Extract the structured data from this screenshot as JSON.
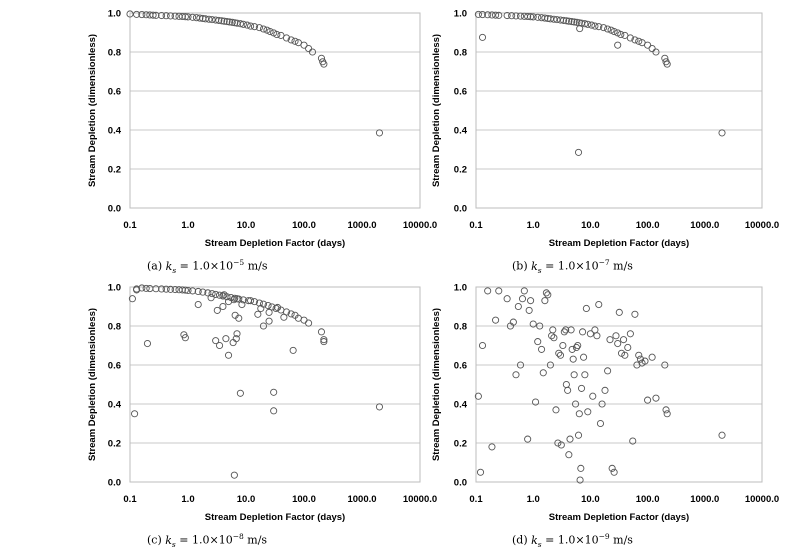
{
  "chart_data": [
    {
      "type": "scatter",
      "x_scale": "log",
      "xlabel": "Stream Depletion Factor (days)",
      "ylabel": "Stream Depletion (dimensionless)",
      "xlim": [
        0.1,
        10000
      ],
      "ylim": [
        0,
        1
      ],
      "xticks": [
        "0.1",
        "1.0",
        "10.0",
        "100.0",
        "1000.0",
        "10000.0"
      ],
      "yticks": [
        "0.0",
        "0.2",
        "0.4",
        "0.6",
        "0.8",
        "1.0"
      ],
      "grid": "horizontal",
      "caption": {
        "prefix": "(a)",
        "mantissa": "1.0",
        "exponent": "−5",
        "units": "m/s"
      },
      "x": [
        0.1,
        0.13,
        0.16,
        0.19,
        0.22,
        0.25,
        0.28,
        0.35,
        0.42,
        0.5,
        0.6,
        0.7,
        0.8,
        0.9,
        1.0,
        1.2,
        1.4,
        1.6,
        1.8,
        2.0,
        2.3,
        2.6,
        3.0,
        3.4,
        3.8,
        4.2,
        4.7,
        5.2,
        5.8,
        6.4,
        7.0,
        8.0,
        9.0,
        10.5,
        12.0,
        14.0,
        17.0,
        20.0,
        23.0,
        26.0,
        30.0,
        34.0,
        40.0,
        50.0,
        60.0,
        70.0,
        80.0,
        100.0,
        120.0,
        140.0,
        200.0,
        210.0,
        220.0,
        2000.0
      ],
      "y": [
        0.995,
        0.993,
        0.992,
        0.991,
        0.99,
        0.989,
        0.988,
        0.987,
        0.986,
        0.985,
        0.984,
        0.983,
        0.982,
        0.981,
        0.98,
        0.978,
        0.976,
        0.974,
        0.972,
        0.97,
        0.968,
        0.966,
        0.964,
        0.962,
        0.96,
        0.958,
        0.956,
        0.954,
        0.952,
        0.95,
        0.948,
        0.945,
        0.942,
        0.938,
        0.933,
        0.93,
        0.925,
        0.918,
        0.912,
        0.905,
        0.898,
        0.89,
        0.885,
        0.872,
        0.862,
        0.855,
        0.848,
        0.835,
        0.818,
        0.8,
        0.768,
        0.75,
        0.738,
        0.385
      ]
    },
    {
      "type": "scatter",
      "x_scale": "log",
      "xlabel": "Stream Depletion Factor (days)",
      "ylabel": "Stream Depletion (dimensionless)",
      "xlim": [
        0.1,
        10000
      ],
      "ylim": [
        0,
        1
      ],
      "xticks": [
        "0.1",
        "1.0",
        "10.0",
        "100.0",
        "1000.0",
        "10000.0"
      ],
      "yticks": [
        "0.0",
        "0.2",
        "0.4",
        "0.6",
        "0.8",
        "1.0"
      ],
      "grid": "horizontal",
      "caption": {
        "prefix": "(b)",
        "mantissa": "1.0",
        "exponent": "−7",
        "units": "m/s"
      },
      "x": [
        0.11,
        0.13,
        0.16,
        0.19,
        0.22,
        0.25,
        0.35,
        0.42,
        0.5,
        0.6,
        0.7,
        0.8,
        0.9,
        1.0,
        1.2,
        1.4,
        1.6,
        1.8,
        2.0,
        2.3,
        2.6,
        3.0,
        3.4,
        3.8,
        4.2,
        4.7,
        5.2,
        5.8,
        6.4,
        7.0,
        8.0,
        9.0,
        10.5,
        12.0,
        14.0,
        17.0,
        20.0,
        23.0,
        26.0,
        30.0,
        34.0,
        40.0,
        50.0,
        60.0,
        70.0,
        80.0,
        100.0,
        120.0,
        140.0,
        200.0,
        210.0,
        220.0,
        2000.0,
        0.13,
        6.5,
        30.0,
        6.2
      ],
      "y": [
        0.993,
        0.992,
        0.991,
        0.99,
        0.989,
        0.988,
        0.987,
        0.986,
        0.985,
        0.984,
        0.983,
        0.982,
        0.981,
        0.98,
        0.978,
        0.976,
        0.974,
        0.972,
        0.97,
        0.968,
        0.966,
        0.964,
        0.962,
        0.96,
        0.958,
        0.956,
        0.954,
        0.952,
        0.95,
        0.948,
        0.945,
        0.942,
        0.938,
        0.933,
        0.93,
        0.925,
        0.918,
        0.912,
        0.905,
        0.898,
        0.89,
        0.885,
        0.872,
        0.862,
        0.855,
        0.848,
        0.835,
        0.818,
        0.8,
        0.768,
        0.75,
        0.738,
        0.385,
        0.875,
        0.92,
        0.835,
        0.285
      ]
    },
    {
      "type": "scatter",
      "x_scale": "log",
      "xlabel": "Stream Depletion Factor (days)",
      "ylabel": "Stream Depletion (dimensionless)",
      "xlim": [
        0.1,
        10000
      ],
      "ylim": [
        0,
        1
      ],
      "xticks": [
        "0.1",
        "1.0",
        "10.0",
        "100.0",
        "1000.0",
        "10000.0"
      ],
      "yticks": [
        "0.0",
        "0.2",
        "0.4",
        "0.6",
        "0.8",
        "1.0"
      ],
      "grid": "horizontal",
      "caption": {
        "prefix": "(c)",
        "mantissa": "1.0",
        "exponent": "−8",
        "units": "m/s"
      },
      "x": [
        0.11,
        0.13,
        0.16,
        0.19,
        0.22,
        0.28,
        0.35,
        0.42,
        0.5,
        0.6,
        0.7,
        0.8,
        0.9,
        1.0,
        1.2,
        1.5,
        1.8,
        2.2,
        2.6,
        3.0,
        3.5,
        4.0,
        4.7,
        5.5,
        6.4,
        7.5,
        9.0,
        11.0,
        14.0,
        17.0,
        20.0,
        24.0,
        28.0,
        33.0,
        40.0,
        50.0,
        60.0,
        70.0,
        80.0,
        100.0,
        120.0,
        200.0,
        220.0,
        0.12,
        0.2,
        0.85,
        1.5,
        3.0,
        3.5,
        4.0,
        4.5,
        5.0,
        6.0,
        6.2,
        6.5,
        7.0,
        7.5,
        8.0,
        20.0,
        25.0,
        30.0,
        30.0,
        35.0,
        65.0,
        2000.0,
        6.3,
        4.2,
        7.0,
        5.0,
        4.0,
        2.5,
        3.2,
        12.0,
        16.0,
        25.0,
        8.5,
        45.0,
        0.9,
        0.13,
        6.8,
        18.0,
        220.0
      ],
      "y": [
        0.94,
        0.99,
        0.995,
        0.993,
        0.992,
        0.991,
        0.99,
        0.989,
        0.988,
        0.987,
        0.986,
        0.985,
        0.984,
        0.982,
        0.98,
        0.977,
        0.974,
        0.97,
        0.966,
        0.962,
        0.958,
        0.954,
        0.95,
        0.946,
        0.942,
        0.938,
        0.934,
        0.93,
        0.925,
        0.918,
        0.912,
        0.905,
        0.898,
        0.89,
        0.882,
        0.872,
        0.862,
        0.855,
        0.84,
        0.83,
        0.815,
        0.77,
        0.72,
        0.35,
        0.71,
        0.755,
        0.91,
        0.725,
        0.7,
        0.955,
        0.735,
        0.65,
        0.715,
        0.935,
        0.855,
        0.76,
        0.84,
        0.455,
        0.8,
        0.87,
        0.46,
        0.365,
        0.895,
        0.675,
        0.385,
        0.035,
        0.96,
        0.94,
        0.925,
        0.9,
        0.945,
        0.88,
        0.93,
        0.86,
        0.825,
        0.91,
        0.845,
        0.74,
        0.985,
        0.735,
        0.89,
        0.73
      ]
    },
    {
      "type": "scatter",
      "x_scale": "log",
      "xlabel": "Stream Depletion Factor (days)",
      "ylabel": "Stream Depletion (dimensionless)",
      "xlim": [
        0.1,
        10000
      ],
      "ylim": [
        0,
        1
      ],
      "xticks": [
        "0.1",
        "1.0",
        "10.0",
        "100.0",
        "1000.0",
        "10000.0"
      ],
      "yticks": [
        "0.0",
        "0.2",
        "0.4",
        "0.6",
        "0.8",
        "1.0"
      ],
      "grid": "horizontal",
      "caption": {
        "prefix": "(d)",
        "mantissa": "1.0",
        "exponent": "−9",
        "units": "m/s"
      },
      "x": [
        0.11,
        0.12,
        0.13,
        0.16,
        0.19,
        0.22,
        0.25,
        0.35,
        0.4,
        0.45,
        0.5,
        0.55,
        0.6,
        0.65,
        0.7,
        0.8,
        0.85,
        0.9,
        1.0,
        1.1,
        1.2,
        1.3,
        1.4,
        1.5,
        1.6,
        1.7,
        1.8,
        2.0,
        2.1,
        2.2,
        2.3,
        2.5,
        2.7,
        2.8,
        3.0,
        3.1,
        3.3,
        3.5,
        3.7,
        3.8,
        4.0,
        4.2,
        4.4,
        4.6,
        4.8,
        5.0,
        5.2,
        5.5,
        5.7,
        6.0,
        6.2,
        6.4,
        6.6,
        6.8,
        7.0,
        7.3,
        7.6,
        8.0,
        8.5,
        9.0,
        10.0,
        11.0,
        12.0,
        13.0,
        14.0,
        15.0,
        16.0,
        18.0,
        20.0,
        22.0,
        24.0,
        26.0,
        28.0,
        30.0,
        32.0,
        35.0,
        38.0,
        40.0,
        45.0,
        50.0,
        55.0,
        60.0,
        65.0,
        70.0,
        75.0,
        80.0,
        90.0,
        100.0,
        120.0,
        140.0,
        200.0,
        210.0,
        220.0,
        2000.0
      ],
      "y": [
        0.44,
        0.05,
        0.7,
        0.98,
        0.18,
        0.83,
        0.98,
        0.94,
        0.8,
        0.82,
        0.55,
        0.9,
        0.6,
        0.94,
        0.98,
        0.22,
        0.88,
        0.93,
        0.81,
        0.41,
        0.72,
        0.8,
        0.68,
        0.56,
        0.93,
        0.97,
        0.96,
        0.6,
        0.75,
        0.78,
        0.74,
        0.37,
        0.2,
        0.66,
        0.65,
        0.19,
        0.7,
        0.77,
        0.78,
        0.5,
        0.47,
        0.14,
        0.22,
        0.78,
        0.68,
        0.63,
        0.55,
        0.4,
        0.69,
        0.7,
        0.24,
        0.35,
        0.01,
        0.07,
        0.48,
        0.77,
        0.64,
        0.55,
        0.89,
        0.36,
        0.76,
        0.44,
        0.78,
        0.75,
        0.91,
        0.3,
        0.4,
        0.47,
        0.57,
        0.73,
        0.07,
        0.05,
        0.75,
        0.71,
        0.87,
        0.66,
        0.73,
        0.65,
        0.69,
        0.76,
        0.21,
        0.86,
        0.6,
        0.65,
        0.63,
        0.61,
        0.62,
        0.42,
        0.64,
        0.43,
        0.6,
        0.37,
        0.35,
        0.24
      ]
    }
  ]
}
